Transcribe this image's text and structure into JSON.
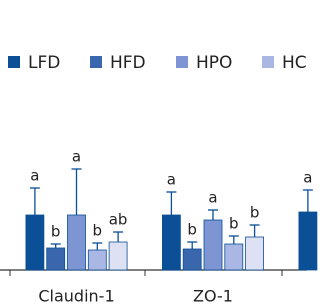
{
  "chart_data": {
    "type": "bar",
    "categories": [
      "Claudin-1",
      "ZO-1",
      null
    ],
    "ylim": [
      0,
      110
    ],
    "series": [
      {
        "name": "LFD",
        "color": "#0b4f96",
        "values": [
          55,
          55,
          58
        ],
        "errors": [
          27,
          23,
          22
        ],
        "value_labels": [
          "a",
          "a",
          "a"
        ]
      },
      {
        "name": "HFD",
        "color": "#3a66ad",
        "values": [
          22,
          21,
          null
        ],
        "errors": [
          4,
          7,
          null
        ],
        "value_labels": [
          "b",
          "b",
          null
        ]
      },
      {
        "name": "HPO",
        "color": "#7d95d3",
        "values": [
          55,
          50,
          null
        ],
        "errors": [
          46,
          10,
          null
        ],
        "value_labels": [
          "a",
          "a",
          null
        ]
      },
      {
        "name": "HC",
        "color": "#aab6e3",
        "values": [
          20,
          26,
          null
        ],
        "errors": [
          7,
          8,
          null
        ],
        "value_labels": [
          "b",
          "b",
          null
        ]
      },
      {
        "name": null,
        "color": "#dde1f3",
        "values": [
          28,
          33,
          null
        ],
        "errors": [
          10,
          12,
          null
        ],
        "value_labels": [
          "ab",
          "b",
          null
        ]
      }
    ]
  }
}
